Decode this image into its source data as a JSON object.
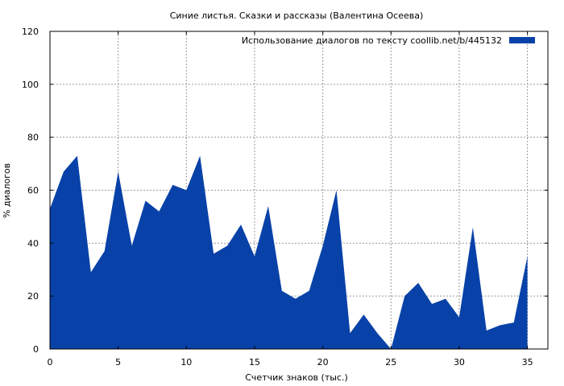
{
  "chart_data": {
    "type": "area",
    "title": "Синие листья. Сказки и рассказы (Валентина Осеева)",
    "xlabel": "Счетчик знаков (тыс.)",
    "ylabel": "% диалогов",
    "xlim": [
      0,
      36.5
    ],
    "ylim": [
      0,
      120
    ],
    "xticks": [
      0,
      5,
      10,
      15,
      20,
      25,
      30,
      35
    ],
    "yticks": [
      0,
      20,
      40,
      60,
      80,
      100,
      120
    ],
    "grid": true,
    "legend_position": "top-right",
    "series": [
      {
        "name": "Использование диалогов по тексту  coollib.net/b/445132",
        "color": "#0842a8",
        "x": [
          0,
          1,
          2,
          3,
          4,
          5,
          6,
          7,
          8,
          9,
          10,
          11,
          12,
          13,
          14,
          15,
          16,
          17,
          18,
          19,
          20,
          21,
          22,
          23,
          24,
          25,
          26,
          27,
          28,
          29,
          30,
          31,
          32,
          33,
          34,
          35
        ],
        "values": [
          53,
          67,
          73,
          29,
          37,
          67,
          39,
          56,
          52,
          62,
          60,
          73,
          36,
          39,
          47,
          35,
          54,
          22,
          19,
          22,
          39,
          60,
          6,
          13,
          6,
          0,
          20,
          25,
          17,
          19,
          12,
          46,
          7,
          9,
          10,
          35
        ]
      }
    ]
  }
}
